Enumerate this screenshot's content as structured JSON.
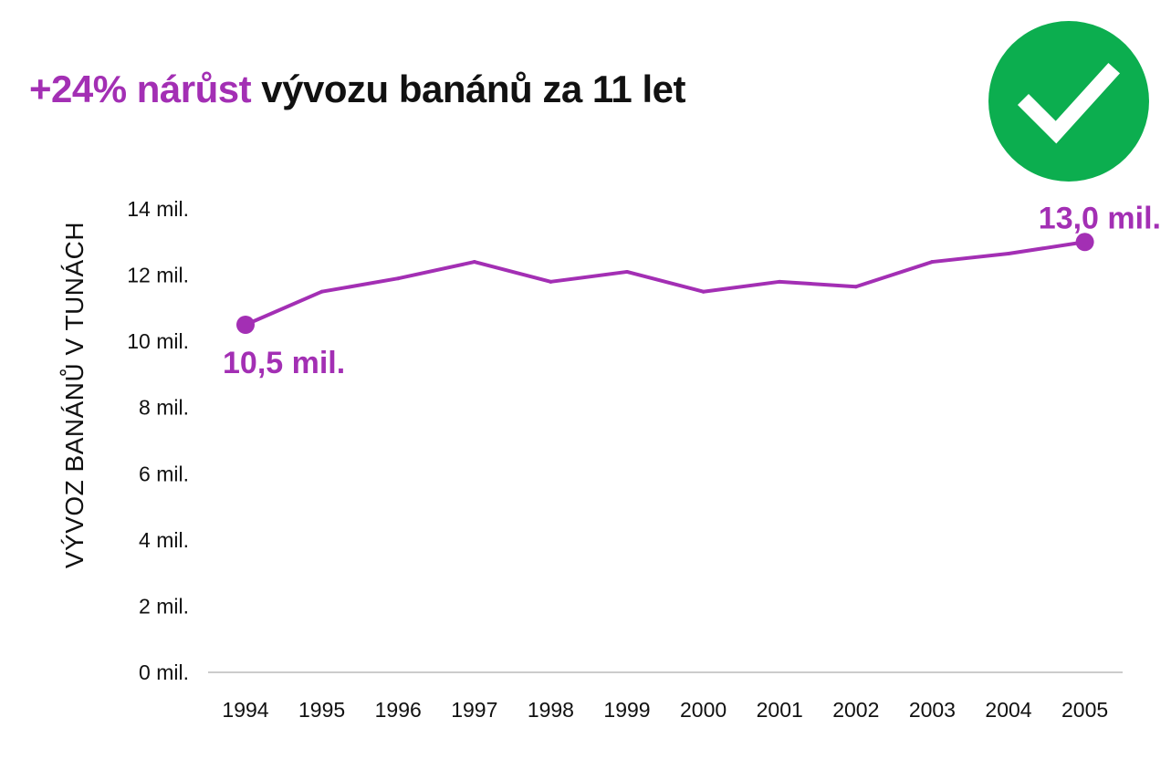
{
  "title": {
    "accent": "+24% nárůst",
    "rest": "vývozu banánů za 11 let"
  },
  "badge": {
    "icon": "checkmark-icon",
    "color": "#0cae4f"
  },
  "colors": {
    "accent": "#a32fb4",
    "axis": "#cccccc",
    "text": "#111111"
  },
  "chart_data": {
    "type": "line",
    "title": "+24% nárůst vývozu banánů za 11 let",
    "ylabel": "VÝVOZ BANÁNŮ V TUNÁCH",
    "xlabel": "",
    "x": [
      "1994",
      "1995",
      "1996",
      "1997",
      "1998",
      "1999",
      "2000",
      "2001",
      "2002",
      "2003",
      "2004",
      "2005"
    ],
    "values": [
      10.5,
      11.5,
      11.9,
      12.4,
      11.8,
      12.1,
      11.5,
      11.8,
      11.65,
      12.4,
      12.65,
      13.0
    ],
    "value_unit": "mil.",
    "ylim": [
      0,
      14
    ],
    "yticks": [
      0,
      2,
      4,
      6,
      8,
      10,
      12,
      14
    ],
    "ytick_labels": [
      "0 mil.",
      "2 mil.",
      "4 mil.",
      "6 mil.",
      "8 mil.",
      "10 mil.",
      "12 mil.",
      "14 mil."
    ],
    "grid": false,
    "endpoint_labels": {
      "first": "10,5 mil.",
      "last": "13,0 mil."
    }
  }
}
